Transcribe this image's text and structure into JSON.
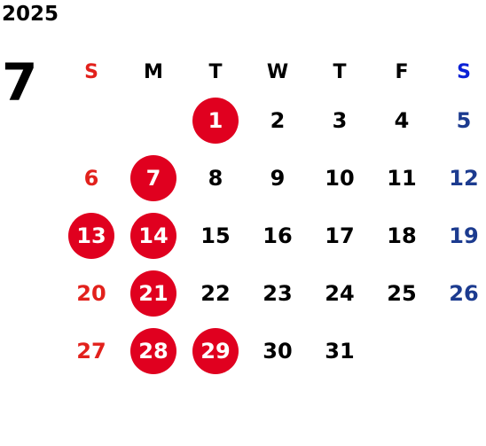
{
  "calendar": {
    "year": "2025",
    "month": "7",
    "weekday_headers": [
      "S",
      "M",
      "T",
      "W",
      "T",
      "F",
      "S"
    ],
    "weeks": [
      [
        "",
        "",
        "1",
        "2",
        "3",
        "4",
        "5"
      ],
      [
        "6",
        "7",
        "8",
        "9",
        "10",
        "11",
        "12"
      ],
      [
        "13",
        "14",
        "15",
        "16",
        "17",
        "18",
        "19"
      ],
      [
        "20",
        "21",
        "22",
        "23",
        "24",
        "25",
        "26"
      ],
      [
        "27",
        "28",
        "29",
        "30",
        "31",
        "",
        ""
      ]
    ],
    "marked_days": [
      "1",
      "7",
      "13",
      "14",
      "21",
      "28",
      "29"
    ]
  },
  "colors": {
    "sunday": "#e2211c",
    "saturday": "#1c3b8f",
    "header_saturday": "#0b21d6",
    "marked_circle": "#e0001f",
    "text": "#000000",
    "background": "#ffffff"
  }
}
